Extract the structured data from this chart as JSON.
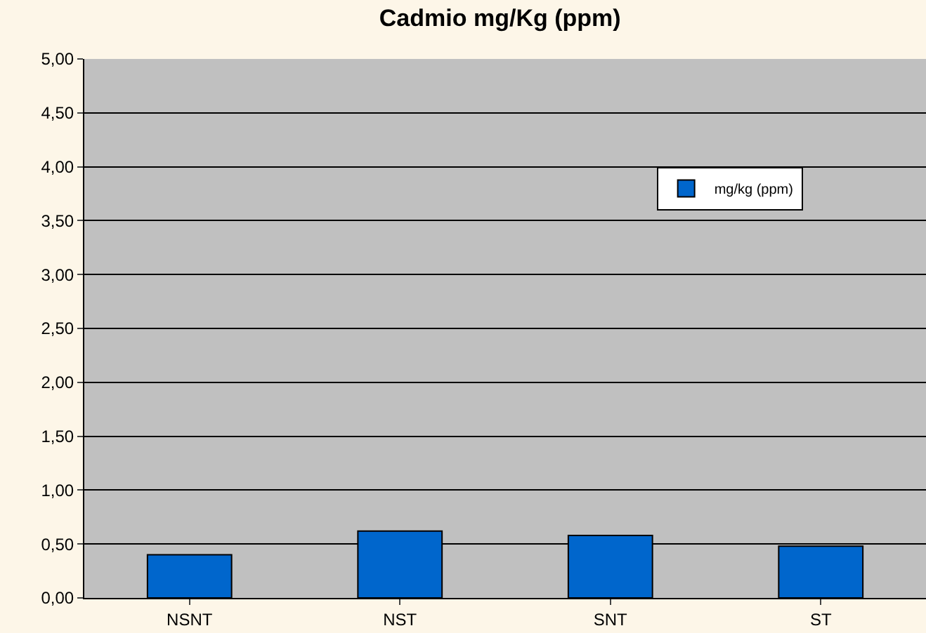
{
  "chart_data": {
    "type": "bar",
    "title": "Cadmio mg/Kg (ppm)",
    "categories": [
      "NSNT",
      "NST",
      "SNT",
      "ST"
    ],
    "series": [
      {
        "name": "mg/kg (ppm)",
        "color": "#0066cc",
        "values": [
          0.4,
          0.62,
          0.58,
          0.48
        ]
      }
    ],
    "ylim": [
      0,
      5
    ],
    "yticks": [
      {
        "value": 0,
        "label": "0,00"
      },
      {
        "value": 0.5,
        "label": "0,50"
      },
      {
        "value": 1,
        "label": "1,00"
      },
      {
        "value": 1.5,
        "label": "1,50"
      },
      {
        "value": 2,
        "label": "2,00"
      },
      {
        "value": 2.5,
        "label": "2,50"
      },
      {
        "value": 3,
        "label": "3,00"
      },
      {
        "value": 3.5,
        "label": "3,50"
      },
      {
        "value": 4,
        "label": "4,00"
      },
      {
        "value": 4.5,
        "label": "4,50"
      },
      {
        "value": 5,
        "label": "5,00"
      }
    ],
    "grid": "y",
    "legend": "top right"
  }
}
